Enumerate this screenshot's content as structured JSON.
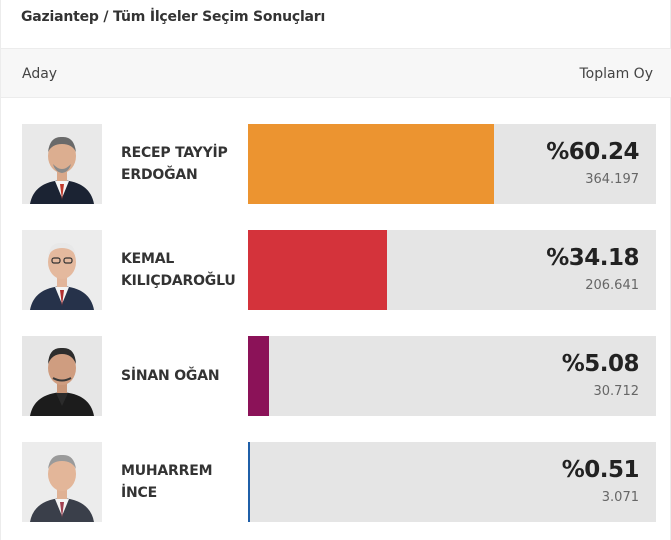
{
  "page": {
    "title": "Gaziantep / Tüm İlçeler Seçim Sonuçları",
    "columns": {
      "left": "Aday",
      "right": "Toplam Oy"
    }
  },
  "candidates": [
    {
      "name_line1": "RECEP TAYYİP",
      "name_line2": "ERDOĞAN",
      "percent_label": "%60.24",
      "percent": 60.24,
      "votes": "364.197",
      "color": "#ec9430",
      "photo_icon": "candidate-portrait-icon"
    },
    {
      "name_line1": "KEMAL",
      "name_line2": "KILIÇDAROĞLU",
      "percent_label": "%34.18",
      "percent": 34.18,
      "votes": "206.641",
      "color": "#d4333b",
      "photo_icon": "candidate-portrait-icon"
    },
    {
      "name_line1": "SİNAN OĞAN",
      "name_line2": "",
      "percent_label": "%5.08",
      "percent": 5.08,
      "votes": "30.712",
      "color": "#8b1258",
      "photo_icon": "candidate-portrait-icon"
    },
    {
      "name_line1": "MUHARREM",
      "name_line2": "İNCE",
      "percent_label": "%0.51",
      "percent": 0.51,
      "votes": "3.071",
      "color": "#1f5fa8",
      "photo_icon": "candidate-portrait-icon"
    }
  ]
}
